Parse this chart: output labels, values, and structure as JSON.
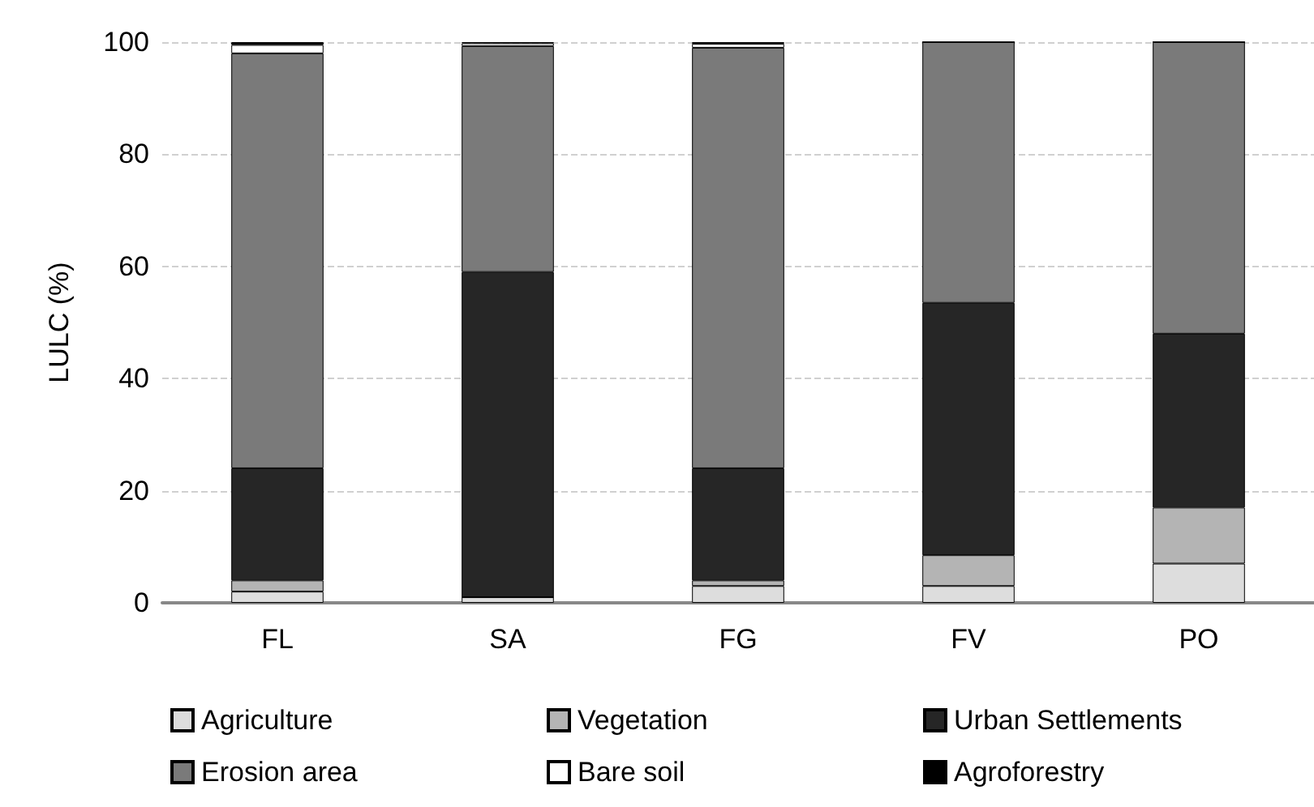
{
  "chart_data": {
    "type": "bar",
    "stacked": true,
    "ylabel": "LULC (%)",
    "categories": [
      "FL",
      "SA",
      "FG",
      "FV",
      "PO"
    ],
    "ylim": [
      0,
      100
    ],
    "yticks": [
      0,
      20,
      40,
      60,
      80,
      100
    ],
    "grid": "y",
    "legend": "bottom",
    "series": [
      {
        "name": "Agriculture",
        "color": "#dddddd",
        "values": [
          2,
          1,
          3,
          3,
          7
        ]
      },
      {
        "name": "Vegetation",
        "color": "#b4b4b4",
        "values": [
          2,
          0,
          1,
          5.5,
          10
        ]
      },
      {
        "name": "Urban Settlements",
        "color": "#262626",
        "values": [
          20,
          58,
          20,
          45,
          31
        ]
      },
      {
        "name": "Erosion area",
        "color": "#7a7a7a",
        "values": [
          74,
          40.3,
          75,
          46.5,
          52
        ]
      },
      {
        "name": "Bare soil",
        "color": "#ffffff",
        "values": [
          1.5,
          0.5,
          0.7,
          0,
          0
        ]
      },
      {
        "name": "Agroforestry",
        "color": "#000000",
        "values": [
          0.5,
          0.2,
          0.3,
          0,
          0
        ]
      }
    ]
  }
}
